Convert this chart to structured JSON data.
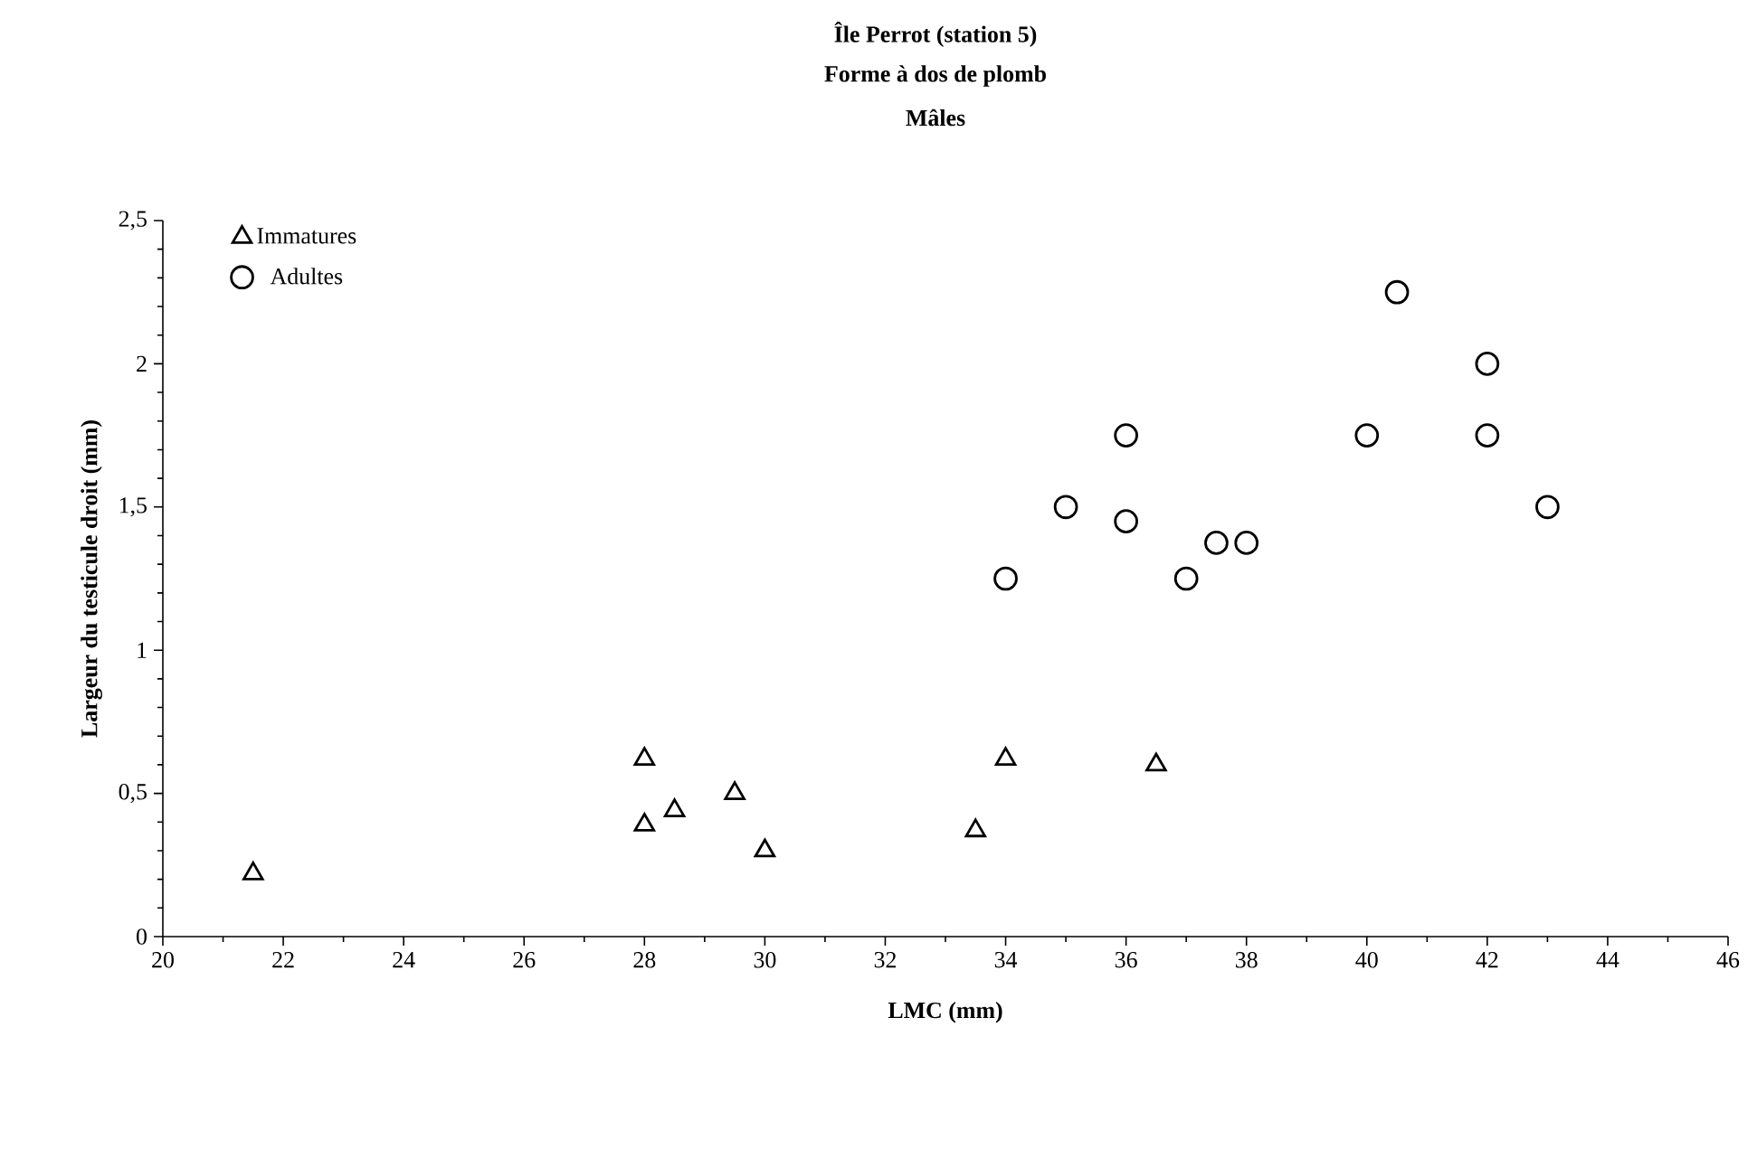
{
  "chart_data": {
    "type": "scatter",
    "title": "Île Perrot (station 5)",
    "subtitle": "Forme à dos de plomb",
    "annotations": [
      "Mâles"
    ],
    "xlabel": "LMC (mm)",
    "ylabel": "Largeur du testicule droit (mm)",
    "xlim": [
      20,
      46
    ],
    "xticks": [
      20,
      22,
      24,
      26,
      28,
      30,
      32,
      34,
      36,
      38,
      40,
      42,
      44,
      46
    ],
    "ylim": [
      0,
      2.5
    ],
    "yticks": [
      0,
      {
        "value": 0.5,
        "label": "0,5"
      },
      1,
      {
        "value": 1.5,
        "label": "1,5"
      },
      2,
      {
        "value": 2.5,
        "label": "2,5"
      }
    ],
    "grid": false,
    "legend": "top left",
    "series": [
      {
        "name": "Immatures",
        "color": "#000000",
        "marker": "triangle",
        "x": [
          21.5,
          28,
          28,
          28.5,
          29.5,
          30,
          33.5,
          34,
          36.5
        ],
        "values": [
          0.22,
          0.62,
          0.39,
          0.44,
          0.5,
          0.3,
          0.37,
          0.62,
          0.6
        ]
      },
      {
        "name": "Adultes",
        "color": "#000000",
        "marker": "circle",
        "x": [
          34,
          35,
          36,
          36,
          37,
          37.5,
          38,
          40,
          40.5,
          42,
          42,
          43
        ],
        "values": [
          1.25,
          1.5,
          1.75,
          1.45,
          1.25,
          1.375,
          1.375,
          1.75,
          2.25,
          2.0,
          1.75,
          1.5
        ]
      }
    ]
  }
}
